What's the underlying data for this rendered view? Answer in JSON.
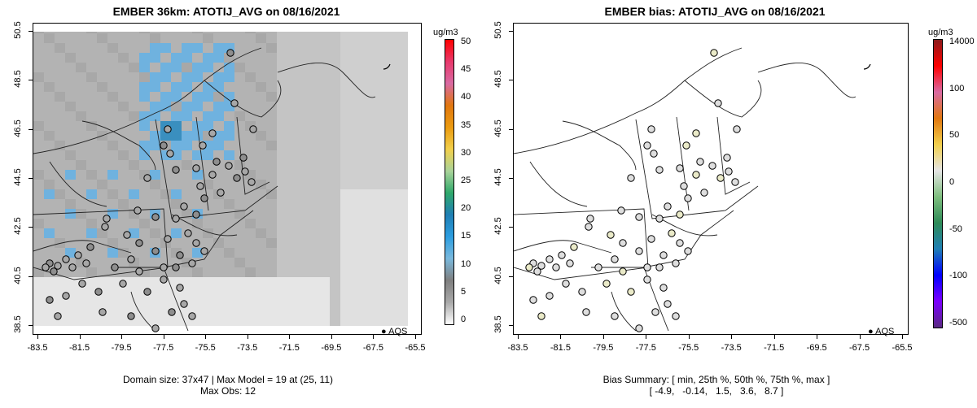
{
  "left_panel": {
    "title": "EMBER 36km: ATOTIJ_AVG on 08/16/2021",
    "y_ticks": [
      "38.5",
      "40.5",
      "42.5",
      "44.5",
      "46.5",
      "48.5",
      "50.5"
    ],
    "x_ticks": [
      "-83.5",
      "-81.5",
      "-79.5",
      "-77.5",
      "-75.5",
      "-73.5",
      "-71.5",
      "-69.5",
      "-67.5",
      "-65.5"
    ],
    "footer_line1": "Domain size: 37x47 | Max Model = 19 at (25, 11)",
    "footer_line2": "Max Obs: 12",
    "legend_label": "AQS",
    "colorbar": {
      "units": "ug/m3",
      "labels": [
        "50",
        "45",
        "40",
        "35",
        "30",
        "25",
        "20",
        "15",
        "10",
        "5",
        "0"
      ],
      "colors": [
        "#ff0000",
        "#e8396c",
        "#d96aa3",
        "#e1770f",
        "#eb9b10",
        "#f2d04c",
        "#a9d39a",
        "#30a96b",
        "#1f7fb4",
        "#2c9de0",
        "#7ab9dd",
        "#7f7f7f",
        "#a9a9a9",
        "#ffffff"
      ]
    }
  },
  "right_panel": {
    "title": "EMBER bias: ATOTIJ_AVG on 08/16/2021",
    "y_ticks": [
      "38.5",
      "40.5",
      "42.5",
      "44.5",
      "46.5",
      "48.5",
      "50.5"
    ],
    "x_ticks": [
      "-83.5",
      "-81.5",
      "-79.5",
      "-77.5",
      "-75.5",
      "-73.5",
      "-71.5",
      "-69.5",
      "-67.5",
      "-65.5"
    ],
    "footer_line1": "Bias Summary: [ min, 25th %, 50th %, 75th %, max ]",
    "footer_line2": "[ -4.9,   -0.14,   1.5,   3.6,   8.7 ]",
    "legend_label": "AQS",
    "colorbar": {
      "units": "ug/m3",
      "labels": [
        "14000",
        "100",
        "50",
        "0",
        "-50",
        "-100",
        "-500"
      ],
      "colors": [
        "#8b1a1a",
        "#ff0000",
        "#d96aa3",
        "#e1770f",
        "#f2d04c",
        "#e5e5e5",
        "#7fbf7f",
        "#2e8b57",
        "#1f7fb4",
        "#0000ff",
        "#7b00ff",
        "#5a2a82"
      ]
    }
  }
}
